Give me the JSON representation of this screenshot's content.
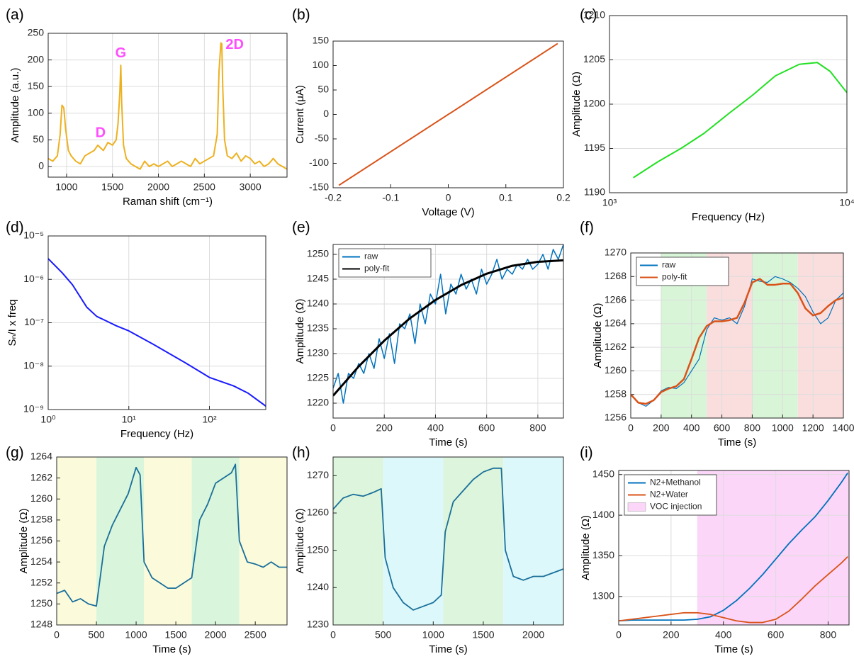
{
  "chart_data": [
    {
      "label": "(a)",
      "type": "line",
      "xlabel": "Raman shift (cm⁻¹)",
      "ylabel": "Amplitude (a.u.)",
      "grid": true,
      "xlim": [
        800,
        3400
      ],
      "ylim": [
        -20,
        250
      ],
      "xticks": [
        1000,
        1500,
        2000,
        2500,
        3000
      ],
      "yticks": [
        0,
        50,
        100,
        150,
        200,
        250
      ],
      "series": [
        {
          "color": "#EDB120",
          "x": [
            800,
            850,
            900,
            930,
            950,
            970,
            990,
            1020,
            1050,
            1100,
            1150,
            1200,
            1250,
            1300,
            1340,
            1370,
            1400,
            1450,
            1500,
            1540,
            1560,
            1580,
            1590,
            1600,
            1620,
            1650,
            1700,
            1750,
            1800,
            1850,
            1900,
            1950,
            2000,
            2050,
            2100,
            2150,
            2200,
            2250,
            2300,
            2350,
            2400,
            2450,
            2500,
            2550,
            2600,
            2640,
            2660,
            2680,
            2690,
            2700,
            2720,
            2750,
            2800,
            2850,
            2900,
            2950,
            3000,
            3050,
            3100,
            3150,
            3200,
            3250,
            3300,
            3350,
            3400
          ],
          "values": [
            15,
            10,
            20,
            60,
            115,
            110,
            70,
            30,
            20,
            10,
            5,
            20,
            25,
            30,
            40,
            35,
            30,
            45,
            40,
            50,
            80,
            140,
            190,
            120,
            40,
            15,
            5,
            0,
            -5,
            10,
            0,
            5,
            0,
            5,
            10,
            0,
            5,
            10,
            5,
            0,
            15,
            5,
            10,
            15,
            20,
            60,
            180,
            232,
            230,
            150,
            50,
            20,
            15,
            25,
            10,
            20,
            15,
            5,
            10,
            0,
            5,
            15,
            5,
            0,
            -5
          ]
        }
      ],
      "annotations": [
        {
          "text": "D",
          "x": 1370,
          "y": 62,
          "color": "#ff4dff"
        },
        {
          "text": "G",
          "x": 1590,
          "y": 212,
          "color": "#ff4dff"
        },
        {
          "text": "2D",
          "x": 2830,
          "y": 228,
          "color": "#ff4dff"
        }
      ]
    },
    {
      "label": "(b)",
      "type": "line",
      "xlabel": "Voltage (V)",
      "ylabel": "Current (μA)",
      "grid": false,
      "xlim": [
        -0.2,
        0.2
      ],
      "ylim": [
        -150,
        150
      ],
      "xticks": [
        -0.2,
        -0.1,
        0,
        0.1,
        0.2
      ],
      "yticks": [
        -150,
        -100,
        -50,
        0,
        50,
        100,
        150
      ],
      "series": [
        {
          "color": "#D95319",
          "x": [
            -0.19,
            0.19
          ],
          "values": [
            -145,
            145
          ]
        }
      ]
    },
    {
      "label": "(c)",
      "type": "line",
      "xlabel": "Frequency (Hz)",
      "ylabel": "Amplitude (Ω)",
      "grid": true,
      "xlog": true,
      "xlim": [
        1000,
        10000
      ],
      "ylim": [
        1190,
        1210
      ],
      "xticks": [
        {
          "value": 1000,
          "label": "10³"
        },
        {
          "value": 10000,
          "label": "10⁴"
        }
      ],
      "yticks": [
        1190,
        1195,
        1200,
        1205,
        1210
      ],
      "series": [
        {
          "color": "#22e022",
          "x": [
            1260,
            1600,
            2000,
            2500,
            3200,
            4000,
            5000,
            6300,
            7500,
            8500,
            10000
          ],
          "values": [
            1191.7,
            1193.5,
            1195,
            1196.7,
            1199,
            1201,
            1203.2,
            1204.5,
            1204.7,
            1203.7,
            1201.3
          ]
        }
      ]
    },
    {
      "label": "(d)",
      "type": "line",
      "xlabel": "Frequency (Hz)",
      "ylabel": "Sₙ/I x freq",
      "grid": true,
      "xlog": true,
      "ylog": true,
      "xlim": [
        1,
        500
      ],
      "ylim": [
        1e-09,
        1e-05
      ],
      "xticks": [
        {
          "value": 1,
          "label": "10⁰"
        },
        {
          "value": 10,
          "label": "10¹"
        },
        {
          "value": 100,
          "label": "10²"
        }
      ],
      "yticks": [
        {
          "value": 1e-09,
          "label": "10⁻⁹"
        },
        {
          "value": 1e-08,
          "label": "10⁻⁸"
        },
        {
          "value": 1e-07,
          "label": "10⁻⁷"
        },
        {
          "value": 1e-06,
          "label": "10⁻⁶"
        },
        {
          "value": 1e-05,
          "label": "10⁻⁵"
        }
      ],
      "series": [
        {
          "color": "#1a1aff",
          "x": [
            1,
            1.5,
            2,
            3,
            4,
            5,
            7,
            10,
            20,
            50,
            100,
            200,
            300,
            500
          ],
          "values": [
            3e-06,
            1.4e-06,
            7.5e-07,
            2.3e-07,
            1.4e-07,
            1.15e-07,
            8.5e-08,
            6.5e-08,
            3.2e-08,
            1.2e-08,
            5.5e-09,
            3.5e-09,
            2.4e-09,
            1.2e-09
          ]
        }
      ]
    },
    {
      "label": "(e)",
      "type": "line",
      "xlabel": "Time (s)",
      "ylabel": "Amplitude (Ω)",
      "grid": true,
      "legend": "upper left",
      "xlim": [
        0,
        900
      ],
      "ylim": [
        1217,
        1252
      ],
      "xticks": [
        0,
        200,
        400,
        600,
        800
      ],
      "yticks": [
        1220,
        1225,
        1230,
        1235,
        1240,
        1245,
        1250
      ],
      "series": [
        {
          "name": "raw",
          "color": "#0072BD",
          "width": 1.5,
          "x": [
            0,
            20,
            40,
            60,
            80,
            100,
            120,
            140,
            160,
            180,
            200,
            220,
            240,
            260,
            280,
            300,
            320,
            340,
            360,
            380,
            400,
            420,
            440,
            460,
            480,
            500,
            520,
            540,
            560,
            580,
            600,
            620,
            640,
            660,
            680,
            700,
            720,
            740,
            760,
            780,
            800,
            820,
            840,
            860,
            880,
            900
          ],
          "values": [
            1223,
            1226,
            1220,
            1226,
            1225,
            1228,
            1226,
            1230,
            1227,
            1233,
            1229,
            1234,
            1228,
            1236,
            1235,
            1238,
            1232,
            1240,
            1236,
            1242,
            1240,
            1246,
            1238,
            1244,
            1242,
            1246,
            1243,
            1245,
            1242,
            1247,
            1244,
            1246,
            1249,
            1245,
            1247,
            1246,
            1248,
            1247,
            1249,
            1247,
            1248,
            1250,
            1247,
            1251,
            1249,
            1252
          ]
        },
        {
          "name": "poly-fit",
          "color": "#000000",
          "width": 3,
          "x": [
            0,
            100,
            200,
            300,
            400,
            500,
            600,
            700,
            800,
            900
          ],
          "values": [
            1221.5,
            1227.4,
            1232.6,
            1237.1,
            1240.8,
            1243.8,
            1246.1,
            1247.7,
            1248.5,
            1248.8
          ]
        }
      ]
    },
    {
      "label": "(f)",
      "type": "line",
      "xlabel": "Time (s)",
      "ylabel": "Amplitude (Ω)",
      "grid": true,
      "legend": "upper left",
      "xlim": [
        0,
        1400
      ],
      "ylim": [
        1256,
        1270
      ],
      "xticks": [
        0,
        200,
        400,
        600,
        800,
        1000,
        1200,
        1400
      ],
      "yticks": [
        1256,
        1258,
        1260,
        1262,
        1264,
        1266,
        1268,
        1270
      ],
      "regions": [
        {
          "x0": 200,
          "x1": 500,
          "color": "#d8f5d8"
        },
        {
          "x0": 500,
          "x1": 800,
          "color": "#fadede"
        },
        {
          "x0": 800,
          "x1": 1100,
          "color": "#d8f5d8"
        },
        {
          "x0": 1100,
          "x1": 1400,
          "color": "#fadede"
        }
      ],
      "series": [
        {
          "name": "raw",
          "color": "#0072BD",
          "width": 1.2,
          "x": [
            0,
            50,
            100,
            150,
            200,
            250,
            300,
            350,
            400,
            450,
            500,
            550,
            600,
            650,
            700,
            750,
            800,
            850,
            900,
            950,
            1000,
            1050,
            1100,
            1150,
            1200,
            1250,
            1300,
            1350,
            1400
          ],
          "values": [
            1258,
            1257.3,
            1257,
            1257.5,
            1258.3,
            1258.6,
            1258.5,
            1259,
            1260,
            1261,
            1263.5,
            1264.5,
            1264.3,
            1264.5,
            1264,
            1265.5,
            1267.8,
            1267.6,
            1267.5,
            1268,
            1267.8,
            1267.5,
            1267,
            1266.3,
            1265,
            1264,
            1264.5,
            1266,
            1266.6
          ]
        },
        {
          "name": "poly-fit",
          "color": "#D95319",
          "width": 2.5,
          "x": [
            0,
            50,
            100,
            150,
            200,
            250,
            300,
            350,
            400,
            450,
            500,
            550,
            600,
            650,
            700,
            750,
            800,
            850,
            900,
            950,
            1000,
            1050,
            1100,
            1150,
            1200,
            1250,
            1300,
            1350,
            1400
          ],
          "values": [
            1258,
            1257.3,
            1257.2,
            1257.5,
            1258.2,
            1258.5,
            1258.7,
            1259.3,
            1261,
            1262.8,
            1263.8,
            1264.2,
            1264.2,
            1264.3,
            1264.5,
            1265.8,
            1267.5,
            1267.8,
            1267.3,
            1267.3,
            1267.4,
            1267.4,
            1266.6,
            1265.3,
            1264.7,
            1264.9,
            1265.5,
            1266,
            1266.2
          ]
        }
      ]
    },
    {
      "label": "(g)",
      "type": "line",
      "xlabel": "Time (s)",
      "ylabel": "Amplitude (Ω)",
      "grid": false,
      "xlim": [
        0,
        2900
      ],
      "ylim": [
        1248,
        1264
      ],
      "xticks": [
        0,
        500,
        1000,
        1500,
        2000,
        2500
      ],
      "yticks": [
        1248,
        1250,
        1252,
        1254,
        1256,
        1258,
        1260,
        1262,
        1264
      ],
      "regions": [
        {
          "x0": 0,
          "x1": 500,
          "color": "#fbfbdc"
        },
        {
          "x0": 500,
          "x1": 1100,
          "color": "#d9f5dc"
        },
        {
          "x0": 1100,
          "x1": 1700,
          "color": "#fbfbdc"
        },
        {
          "x0": 1700,
          "x1": 2300,
          "color": "#d9f5dc"
        },
        {
          "x0": 2300,
          "x1": 2900,
          "color": "#fbfbdc"
        }
      ],
      "series": [
        {
          "color": "#1a6f9a",
          "width": 1.8,
          "x": [
            0,
            100,
            200,
            300,
            400,
            500,
            600,
            700,
            800,
            900,
            1000,
            1050,
            1100,
            1200,
            1300,
            1400,
            1500,
            1600,
            1700,
            1800,
            1900,
            2000,
            2100,
            2200,
            2250,
            2300,
            2400,
            2500,
            2600,
            2700,
            2800,
            2900
          ],
          "values": [
            1251,
            1251.3,
            1250.2,
            1250.5,
            1250,
            1249.8,
            1255.5,
            1257.5,
            1259,
            1260.5,
            1263,
            1262.3,
            1254,
            1252.5,
            1252,
            1251.5,
            1251.5,
            1252,
            1252.5,
            1258,
            1259.5,
            1261.5,
            1262,
            1262.5,
            1263.3,
            1256,
            1254,
            1253.8,
            1253.5,
            1254,
            1253.5,
            1253.5
          ]
        }
      ]
    },
    {
      "label": "(h)",
      "type": "line",
      "xlabel": "Time (s)",
      "ylabel": "Amplitude (Ω)",
      "grid": false,
      "xlim": [
        0,
        2300
      ],
      "ylim": [
        1230,
        1275
      ],
      "xticks": [
        0,
        500,
        1000,
        1500,
        2000
      ],
      "yticks": [
        1230,
        1240,
        1250,
        1260,
        1270
      ],
      "regions": [
        {
          "x0": 0,
          "x1": 500,
          "color": "#dcf5dc"
        },
        {
          "x0": 500,
          "x1": 1100,
          "color": "#dcf8fa"
        },
        {
          "x0": 1100,
          "x1": 1700,
          "color": "#dcf5dc"
        },
        {
          "x0": 1700,
          "x1": 2300,
          "color": "#dcf8fa"
        }
      ],
      "series": [
        {
          "color": "#1a6f9a",
          "width": 1.8,
          "x": [
            0,
            100,
            200,
            300,
            400,
            480,
            520,
            600,
            700,
            800,
            900,
            1000,
            1080,
            1120,
            1200,
            1300,
            1400,
            1500,
            1600,
            1680,
            1720,
            1800,
            1900,
            2000,
            2100,
            2200,
            2300
          ],
          "values": [
            1261,
            1264,
            1265,
            1264.5,
            1265.5,
            1266.5,
            1248,
            1240,
            1236,
            1234,
            1235,
            1236,
            1238,
            1255,
            1263,
            1266,
            1269,
            1271,
            1272,
            1272,
            1250,
            1243,
            1242,
            1243,
            1243,
            1244,
            1245
          ]
        }
      ]
    },
    {
      "label": "(i)",
      "type": "line",
      "xlabel": "Time (s)",
      "ylabel": "Amplitude (Ω)",
      "grid": true,
      "legend": "upper left",
      "xlim": [
        0,
        880
      ],
      "ylim": [
        1265,
        1455
      ],
      "xticks": [
        0,
        200,
        400,
        600,
        800
      ],
      "yticks": [
        1300,
        1350,
        1400,
        1450
      ],
      "regions": [
        {
          "name": "VOC injection",
          "x0": 300,
          "x1": 880,
          "color": "#fbd6f8"
        }
      ],
      "series": [
        {
          "name": "N2+Methanol",
          "color": "#0072BD",
          "width": 1.8,
          "x": [
            0,
            50,
            100,
            150,
            200,
            250,
            300,
            350,
            400,
            450,
            500,
            550,
            600,
            650,
            700,
            750,
            800,
            850,
            875
          ],
          "values": [
            1270,
            1271,
            1271,
            1271,
            1271,
            1271,
            1272,
            1275,
            1283,
            1295,
            1310,
            1327,
            1346,
            1365,
            1382,
            1398,
            1418,
            1440,
            1452
          ]
        },
        {
          "name": "N2+Water",
          "color": "#D95319",
          "width": 1.8,
          "x": [
            0,
            50,
            100,
            150,
            200,
            250,
            300,
            350,
            400,
            450,
            500,
            550,
            600,
            650,
            700,
            750,
            800,
            850,
            875
          ],
          "values": [
            1270,
            1272,
            1274,
            1276,
            1278,
            1280,
            1280,
            1278,
            1274,
            1270,
            1268,
            1268,
            1272,
            1282,
            1297,
            1313,
            1327,
            1341,
            1349
          ]
        }
      ]
    }
  ]
}
